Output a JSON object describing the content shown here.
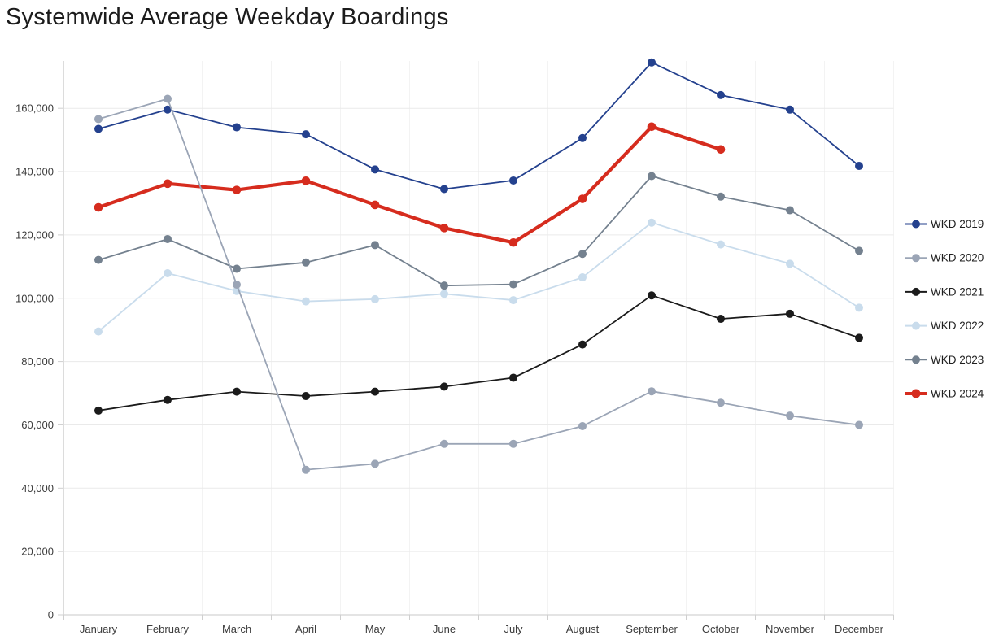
{
  "chart_data": {
    "type": "line",
    "title": "Systemwide Average Weekday Boardings",
    "categories": [
      "January",
      "February",
      "March",
      "April",
      "May",
      "June",
      "July",
      "August",
      "September",
      "October",
      "November",
      "December"
    ],
    "xlabel": "",
    "ylabel": "",
    "ylim": [
      0,
      175000
    ],
    "yticks": [
      0,
      20000,
      40000,
      60000,
      80000,
      100000,
      120000,
      140000,
      160000
    ],
    "ytick_labels": [
      "0",
      "20,000",
      "40,000",
      "60,000",
      "80,000",
      "100,000",
      "120,000",
      "140,000",
      "160,000"
    ],
    "grid": true,
    "legend_position": "right",
    "series": [
      {
        "name": "WKD 2019",
        "color": "#24418e",
        "emphasis": false,
        "values": [
          153500,
          159600,
          154000,
          151800,
          140700,
          134500,
          137200,
          150600,
          174500,
          164200,
          159600,
          141800
        ]
      },
      {
        "name": "WKD 2020",
        "color": "#9ba5b6",
        "emphasis": false,
        "values": [
          156600,
          163000,
          104300,
          45800,
          47700,
          54000,
          54000,
          59600,
          70600,
          67000,
          62900,
          60000
        ]
      },
      {
        "name": "WKD 2021",
        "color": "#1b1b1b",
        "emphasis": false,
        "values": [
          64500,
          67900,
          70500,
          69100,
          70500,
          72100,
          74900,
          85400,
          100900,
          93500,
          95100,
          87500
        ]
      },
      {
        "name": "WKD 2022",
        "color": "#c9dcec",
        "emphasis": false,
        "values": [
          89500,
          107900,
          102300,
          99000,
          99700,
          101400,
          99400,
          106600,
          123900,
          117000,
          110900,
          97000
        ]
      },
      {
        "name": "WKD 2023",
        "color": "#74818f",
        "emphasis": false,
        "values": [
          112100,
          118700,
          109300,
          111300,
          116800,
          104000,
          104400,
          114000,
          138600,
          132100,
          127800,
          115000
        ]
      },
      {
        "name": "WKD 2024",
        "color": "#d62c1e",
        "emphasis": true,
        "values": [
          128700,
          136200,
          134200,
          137100,
          129500,
          122200,
          117600,
          131400,
          154200,
          147000,
          null,
          null
        ]
      }
    ]
  }
}
